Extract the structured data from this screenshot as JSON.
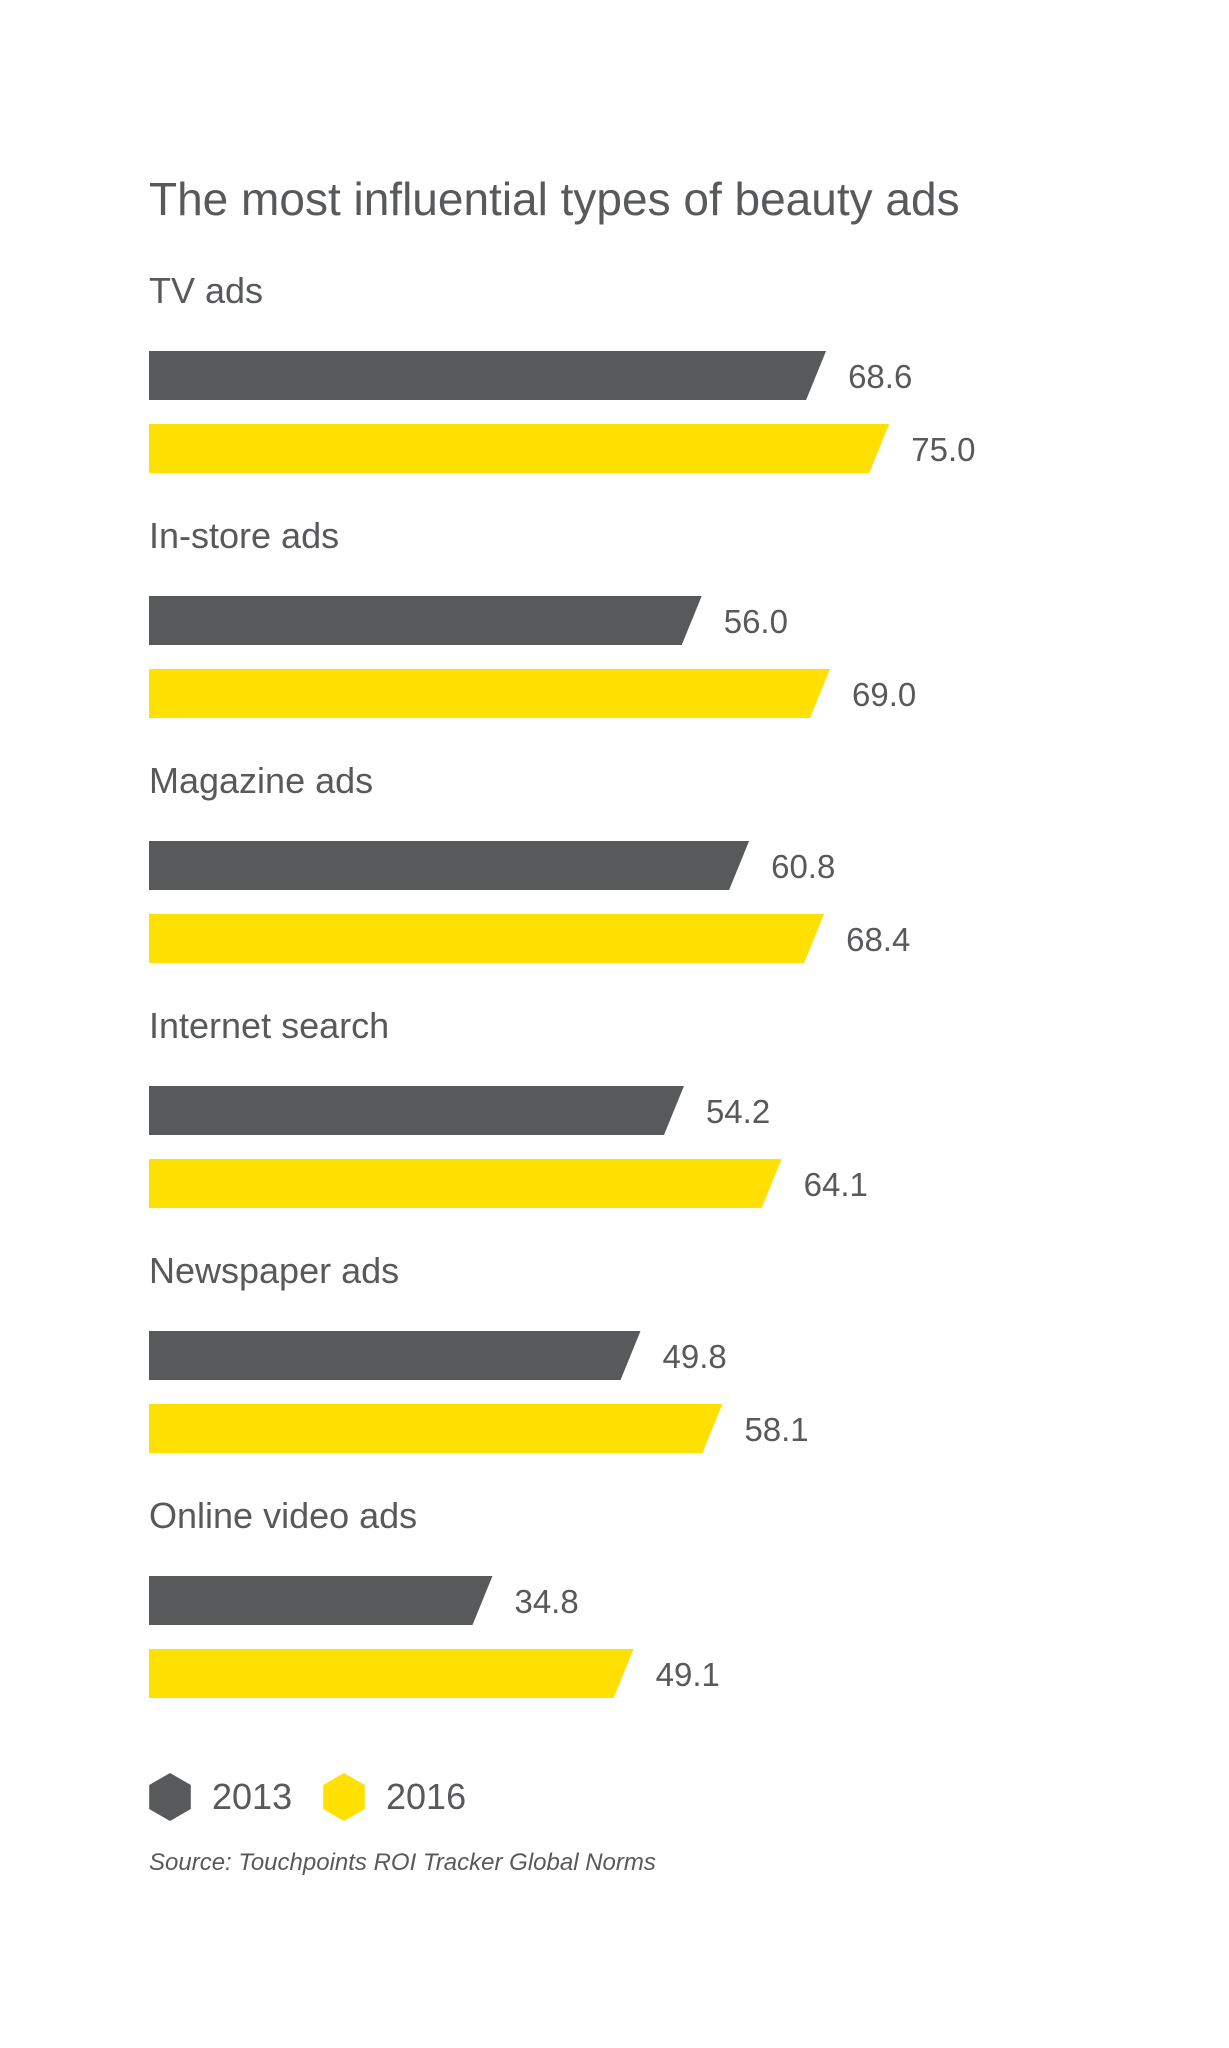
{
  "colors": {
    "series_2013": "#58595b",
    "series_2016": "#ffe000",
    "text": "#58595b",
    "background": "#ffffff"
  },
  "chart_data": {
    "type": "bar",
    "orientation": "horizontal",
    "title": "The most influential types of beauty ads",
    "categories": [
      "TV ads",
      "In-store ads",
      "Magazine ads",
      "Internet search",
      "Newspaper ads",
      "Online video ads"
    ],
    "series": [
      {
        "name": "2013",
        "values": [
          68.6,
          56.0,
          60.8,
          54.2,
          49.8,
          34.8
        ],
        "labels": [
          "68.6",
          "56.0",
          "60.8",
          "54.2",
          "49.8",
          "34.8"
        ]
      },
      {
        "name": "2016",
        "values": [
          75.0,
          69.0,
          68.4,
          64.1,
          58.1,
          49.1
        ],
        "labels": [
          "75.0",
          "69.0",
          "68.4",
          "64.1",
          "58.1",
          "49.1"
        ]
      }
    ],
    "legend_position": "bottom-left",
    "source": "Source: Touchpoints ROI Tracker Global Norms",
    "grid": false,
    "axes_visible": false
  }
}
